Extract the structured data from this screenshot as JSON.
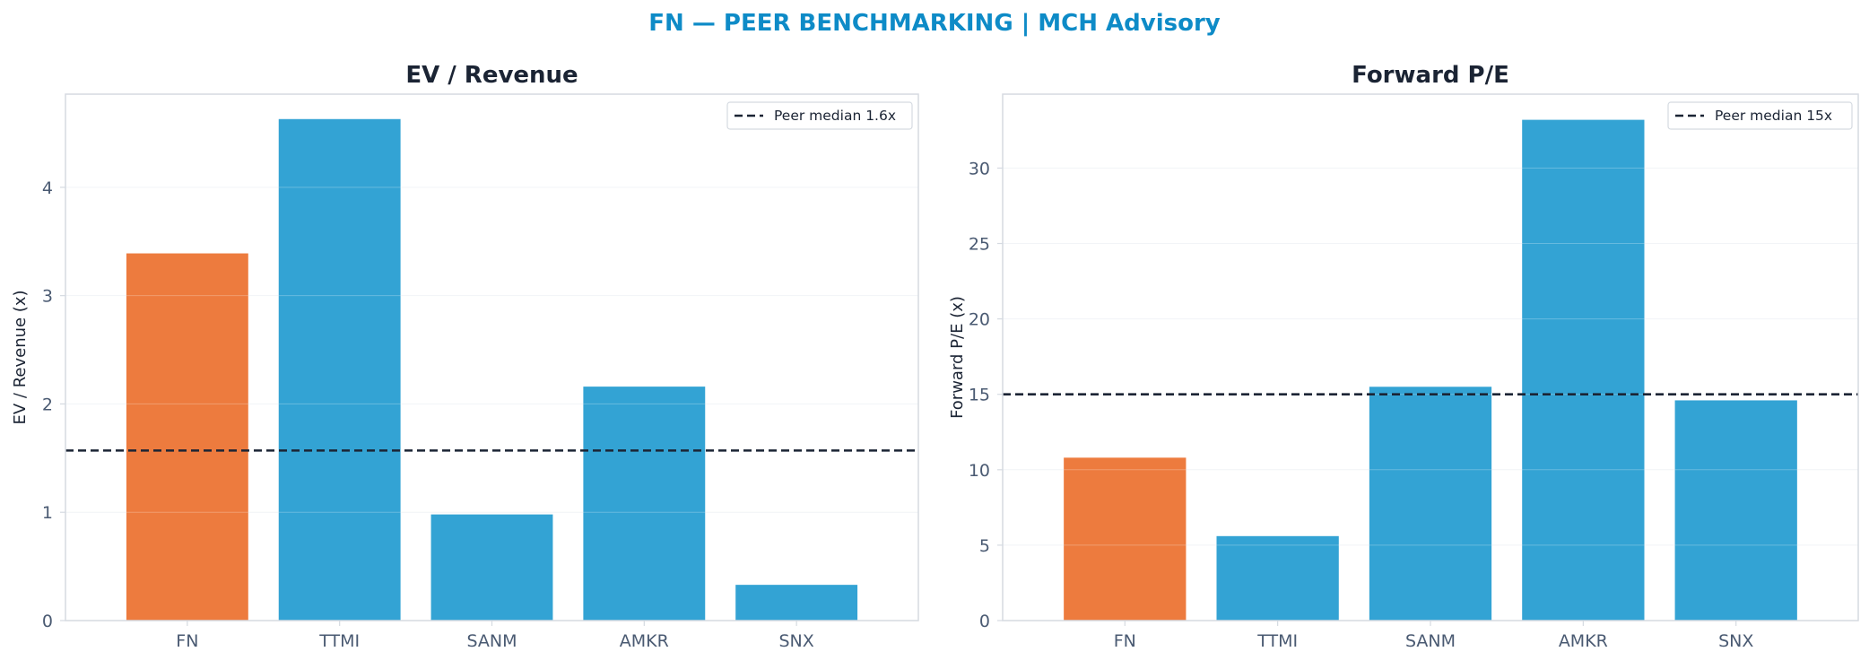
{
  "suptitle": "FN — PEER BENCHMARKING | MCH Advisory",
  "colors": {
    "title": "#0E8BC7",
    "highlight": "#ED7B3E",
    "peer": "#33A3D4",
    "median_line": "#1B2434",
    "axis_text": "#4A5A72",
    "panel_title": "#1B2434"
  },
  "chart_data": [
    {
      "type": "bar",
      "title": "EV / Revenue",
      "ylabel": "EV / Revenue (x)",
      "categories": [
        "FN",
        "TTMI",
        "SANM",
        "AMKR",
        "SNX"
      ],
      "values": [
        3.39,
        4.63,
        0.98,
        2.16,
        0.33
      ],
      "highlight": "FN",
      "reference_line": {
        "label": "Peer median 1.6x",
        "value": 1.57
      },
      "yticks": [
        0,
        1,
        2,
        3,
        4
      ],
      "ylim": [
        0,
        4.86
      ],
      "grid": true,
      "legend_position": "top-right"
    },
    {
      "type": "bar",
      "title": "Forward P/E",
      "ylabel": "Forward P/E (x)",
      "categories": [
        "FN",
        "TTMI",
        "SANM",
        "AMKR",
        "SNX"
      ],
      "values": [
        10.8,
        5.6,
        15.5,
        33.2,
        14.6
      ],
      "highlight": "FN",
      "reference_line": {
        "label": "Peer median 15x",
        "value": 15.0
      },
      "yticks": [
        0,
        5,
        10,
        15,
        20,
        25,
        30
      ],
      "ylim": [
        0,
        34.9
      ],
      "grid": true,
      "legend_position": "top-right"
    }
  ]
}
